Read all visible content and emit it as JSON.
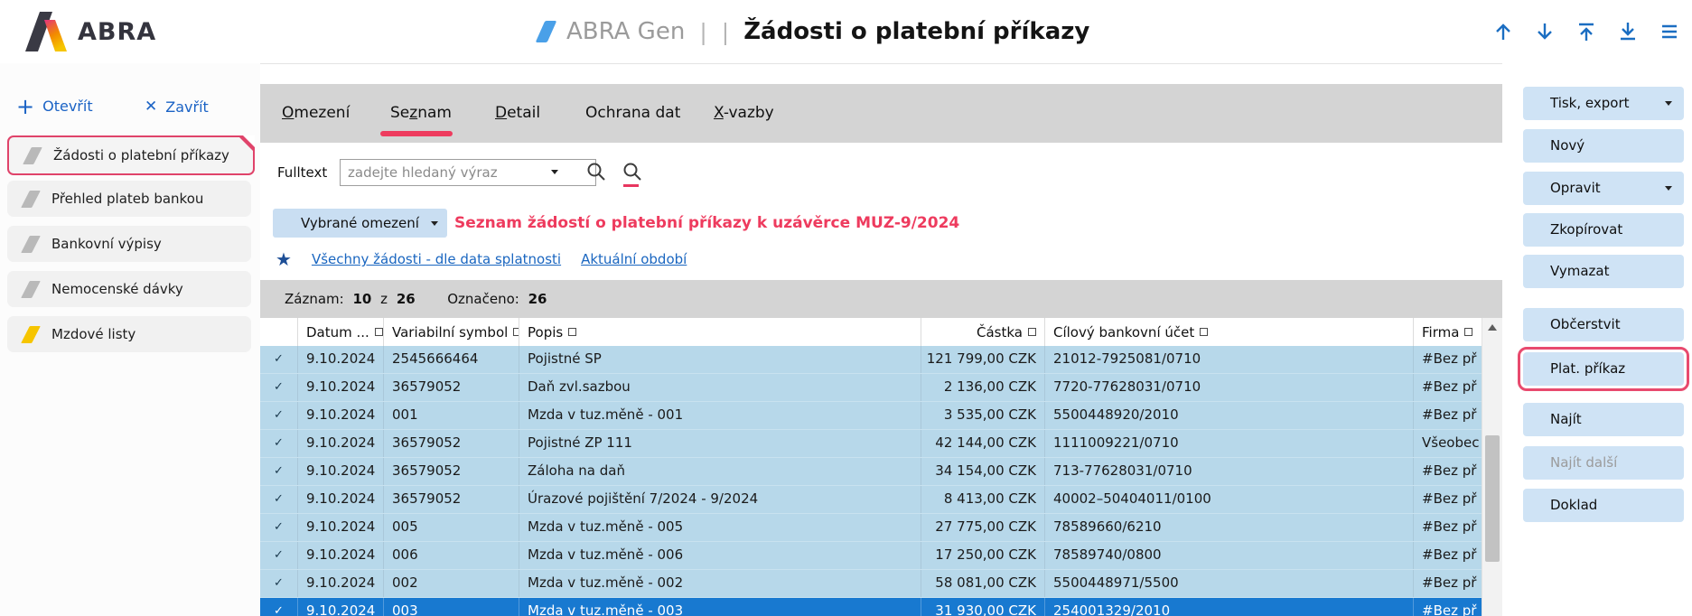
{
  "header": {
    "logo_text": "ABRA",
    "app_name": "ABRA Gen",
    "separator1": "|",
    "separator2": "|",
    "page_title": "Žádosti o platební příkazy",
    "nav_icons": [
      "arrow-up",
      "arrow-down",
      "arrow-to-top",
      "arrow-to-bottom",
      "menu"
    ]
  },
  "left_sidebar": {
    "open_label": "Otevřít",
    "close_label": "Zavřít",
    "items": [
      {
        "label": "Žádosti o platební příkazy",
        "active": true
      },
      {
        "label": "Přehled plateb bankou",
        "active": false
      },
      {
        "label": "Bankovní výpisy",
        "active": false
      },
      {
        "label": "Nemocenské dávky",
        "active": false
      },
      {
        "label": "Mzdové listy",
        "active": false
      }
    ]
  },
  "tabs": [
    {
      "pre": "",
      "key": "O",
      "post": "mezení",
      "active": false
    },
    {
      "pre": "Se",
      "key": "z",
      "post": "nam",
      "active": true
    },
    {
      "pre": "",
      "key": "D",
      "post": "etail",
      "active": false
    },
    {
      "pre": "Ochrana dat",
      "key": "",
      "post": "",
      "active": false
    },
    {
      "pre": "",
      "key": "X",
      "post": "-vazby",
      "active": false
    }
  ],
  "filter": {
    "fulltext_label": "Fulltext",
    "fulltext_placeholder": "zadejte hledaný výraz",
    "restriction_button": "Vybrané omezení",
    "restriction_title": "Seznam žádostí o platební příkazy k uzávěrce MUZ-9/2024",
    "link_favorite": "Všechny žádosti - dle data splatnosti",
    "link_period": "Aktuální období"
  },
  "record_bar": {
    "record_label": "Záznam:",
    "current": "10",
    "of": "z",
    "total": "26",
    "marked_label": "Označeno:",
    "marked": "26"
  },
  "table": {
    "columns": [
      "Datum ...",
      "Variabilní symbol",
      "Popis",
      "Částka",
      "Cílový bankovní účet",
      "Firma"
    ],
    "rows": [
      {
        "checked": true,
        "date": "9.10.2024",
        "symbol": "2545666464",
        "popis": "Pojistné SP",
        "amount": "121 799,00 CZK",
        "account": "21012-7925081/0710",
        "firma": "#Bez př",
        "selected": false
      },
      {
        "checked": true,
        "date": "9.10.2024",
        "symbol": "36579052",
        "popis": "Daň zvl.sazbou",
        "amount": "2 136,00 CZK",
        "account": "7720-77628031/0710",
        "firma": "#Bez př",
        "selected": false
      },
      {
        "checked": true,
        "date": "9.10.2024",
        "symbol": "001",
        "popis": "Mzda v tuz.měně - 001",
        "amount": "3 535,00 CZK",
        "account": "5500448920/2010",
        "firma": "#Bez př",
        "selected": false
      },
      {
        "checked": true,
        "date": "9.10.2024",
        "symbol": "36579052",
        "popis": "Pojistné ZP 111",
        "amount": "42 144,00 CZK",
        "account": "1111009221/0710",
        "firma": "Všeobec",
        "selected": false
      },
      {
        "checked": true,
        "date": "9.10.2024",
        "symbol": "36579052",
        "popis": "Záloha na daň",
        "amount": "34 154,00 CZK",
        "account": "713-77628031/0710",
        "firma": "#Bez př",
        "selected": false
      },
      {
        "checked": true,
        "date": "9.10.2024",
        "symbol": "36579052",
        "popis": "Úrazové pojištění 7/2024 - 9/2024",
        "amount": "8 413,00 CZK",
        "account": "40002–50404011/0100",
        "firma": "#Bez př",
        "selected": false
      },
      {
        "checked": true,
        "date": "9.10.2024",
        "symbol": "005",
        "popis": "Mzda v tuz.měně - 005",
        "amount": "27 775,00 CZK",
        "account": "78589660/6210",
        "firma": "#Bez př",
        "selected": false
      },
      {
        "checked": true,
        "date": "9.10.2024",
        "symbol": "006",
        "popis": "Mzda v tuz.měně - 006",
        "amount": "17 250,00 CZK",
        "account": "78589740/0800",
        "firma": "#Bez př",
        "selected": false
      },
      {
        "checked": true,
        "date": "9.10.2024",
        "symbol": "002",
        "popis": "Mzda v tuz.měně - 002",
        "amount": "58 081,00 CZK",
        "account": "5500448971/5500",
        "firma": "#Bez př",
        "selected": false
      },
      {
        "checked": true,
        "date": "9.10.2024",
        "symbol": "003",
        "popis": "Mzda v tuz.měně - 003",
        "amount": "31 930,00 CZK",
        "account": "254001329/2010",
        "firma": "#Bez př",
        "selected": true
      }
    ]
  },
  "right_sidebar": {
    "buttons": [
      {
        "label": "Tisk, export",
        "dropdown": true,
        "highlighted": false,
        "disabled": false
      },
      {
        "label": "Nový",
        "dropdown": false,
        "highlighted": false,
        "disabled": false
      },
      {
        "label": "Opravit",
        "dropdown": true,
        "highlighted": false,
        "disabled": false
      },
      {
        "label": "Zkopírovat",
        "dropdown": false,
        "highlighted": false,
        "disabled": false
      },
      {
        "label": "Vymazat",
        "dropdown": false,
        "highlighted": false,
        "disabled": false
      },
      {
        "label": "Občerstvit",
        "dropdown": false,
        "highlighted": false,
        "disabled": false
      },
      {
        "label": "Plat. příkaz",
        "dropdown": false,
        "highlighted": true,
        "disabled": false
      },
      {
        "label": "Najít",
        "dropdown": false,
        "highlighted": false,
        "disabled": false
      },
      {
        "label": "Najít další",
        "dropdown": false,
        "highlighted": false,
        "disabled": true
      },
      {
        "label": "Doklad",
        "dropdown": false,
        "highlighted": false,
        "disabled": false
      }
    ]
  },
  "colors": {
    "accent_red": "#e8456b",
    "selection_blue": "#1879d0",
    "row_blue": "#b7d8ea",
    "link_blue": "#1a66c0",
    "button_blue": "#cfe3f5",
    "icon_yellow": "#f6c500",
    "tab_gray": "#d4d4d4"
  }
}
